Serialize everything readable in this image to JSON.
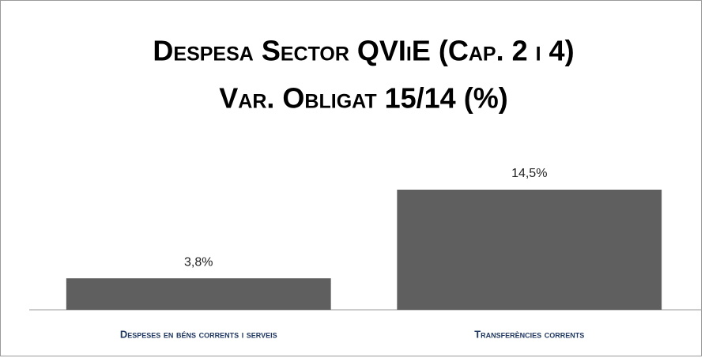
{
  "chart_data": {
    "type": "bar",
    "title": [
      "Despesa Sector QVIiE (Cap. 2 i 4)",
      "Var. Obligat 15/14 (%)"
    ],
    "categories": [
      "Despeses en béns corrents i serveis",
      "Transferències corrents"
    ],
    "values": [
      3.8,
      14.5
    ],
    "value_labels": [
      "3,8%",
      "14,5%"
    ],
    "color": "#5f5f5f"
  }
}
